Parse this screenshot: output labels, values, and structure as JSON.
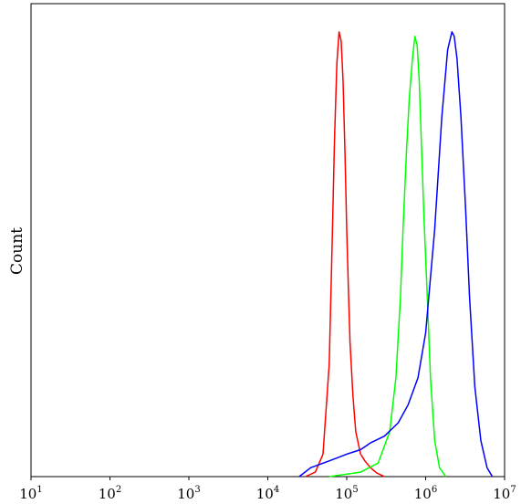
{
  "chart_data": {
    "type": "line",
    "title": "",
    "xlabel": "",
    "ylabel": "Count",
    "xscale": "log",
    "xlim": [
      10,
      10000000
    ],
    "ylim": [
      0,
      1
    ],
    "x_ticks": [
      {
        "base": "10",
        "exp": "1",
        "value": 10
      },
      {
        "base": "10",
        "exp": "2",
        "value": 100
      },
      {
        "base": "10",
        "exp": "3",
        "value": 1000
      },
      {
        "base": "10",
        "exp": "4",
        "value": 10000
      },
      {
        "base": "10",
        "exp": "5",
        "value": 100000
      },
      {
        "base": "10",
        "exp": "6",
        "value": 1000000
      },
      {
        "base": "10",
        "exp": "7",
        "value": 10000000
      }
    ],
    "grid": false,
    "legend": "none",
    "series": [
      {
        "color": "#ff0000",
        "x": [
          30000,
          40000,
          50000,
          60000,
          65000,
          70000,
          75000,
          80000,
          85000,
          90000,
          95000,
          100000,
          105000,
          110000,
          120000,
          130000,
          150000,
          170000,
          200000,
          240000,
          300000
        ],
        "y": [
          0,
          0.01,
          0.05,
          0.25,
          0.5,
          0.75,
          0.92,
          0.99,
          0.97,
          0.88,
          0.72,
          0.55,
          0.42,
          0.3,
          0.18,
          0.1,
          0.05,
          0.035,
          0.02,
          0.008,
          0
        ]
      },
      {
        "color": "#00ff00",
        "x": [
          60000,
          150000,
          250000,
          350000,
          420000,
          480000,
          520000,
          570000,
          620000,
          680000,
          730000,
          780000,
          830000,
          880000,
          950000,
          1050000,
          1150000,
          1300000,
          1500000,
          1800000
        ],
        "y": [
          0,
          0.01,
          0.03,
          0.1,
          0.22,
          0.4,
          0.56,
          0.72,
          0.84,
          0.93,
          0.98,
          0.96,
          0.88,
          0.75,
          0.58,
          0.4,
          0.22,
          0.08,
          0.02,
          0
        ]
      },
      {
        "color": "#0000ff",
        "x": [
          25000,
          35000,
          60000,
          100000,
          150000,
          200000,
          300000,
          450000,
          600000,
          800000,
          1000000,
          1300000,
          1600000,
          1900000,
          2150000,
          2300000,
          2500000,
          2800000,
          3200000,
          3600000,
          4200000,
          5000000,
          6000000,
          7000000
        ],
        "y": [
          0,
          0.02,
          0.035,
          0.05,
          0.06,
          0.075,
          0.09,
          0.12,
          0.16,
          0.22,
          0.32,
          0.55,
          0.8,
          0.95,
          0.99,
          0.98,
          0.93,
          0.8,
          0.6,
          0.4,
          0.2,
          0.08,
          0.02,
          0
        ]
      }
    ]
  }
}
